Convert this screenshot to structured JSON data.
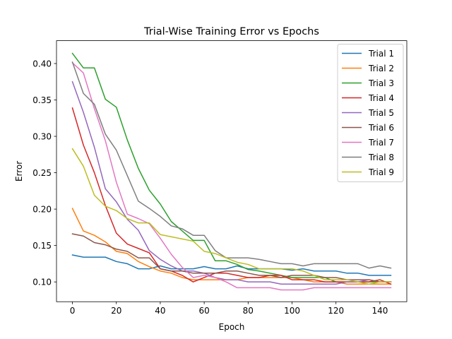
{
  "chart_data": {
    "type": "line",
    "title": "Trial-Wise Training Error vs Epochs",
    "xlabel": "Epoch",
    "ylabel": "Error",
    "xlim": [
      -7.25,
      152.25
    ],
    "ylim": [
      0.0728,
      0.4314
    ],
    "xticks": [
      0,
      20,
      40,
      60,
      80,
      100,
      120,
      140
    ],
    "yticks": [
      0.1,
      0.15,
      0.2,
      0.25,
      0.3,
      0.35,
      0.4
    ],
    "ytick_labels": [
      "0.10",
      "0.15",
      "0.20",
      "0.25",
      "0.30",
      "0.35",
      "0.40"
    ],
    "grid": false,
    "legend_position": "top-right",
    "x": [
      0,
      5,
      10,
      15,
      20,
      25,
      30,
      35,
      40,
      45,
      50,
      55,
      60,
      65,
      70,
      75,
      80,
      85,
      90,
      95,
      100,
      105,
      110,
      115,
      120,
      125,
      130,
      135,
      140,
      145
    ],
    "series": [
      {
        "name": "Trial 1",
        "color": "#1f77b4",
        "values": [
          0.137,
          0.134,
          0.134,
          0.134,
          0.128,
          0.125,
          0.118,
          0.118,
          0.122,
          0.118,
          0.118,
          0.118,
          0.121,
          0.118,
          0.118,
          0.122,
          0.118,
          0.118,
          0.118,
          0.118,
          0.116,
          0.118,
          0.115,
          0.115,
          0.115,
          0.112,
          0.112,
          0.109,
          0.109,
          0.109
        ]
      },
      {
        "name": "Trial 2",
        "color": "#ff7f0e",
        "values": [
          0.201,
          0.17,
          0.164,
          0.155,
          0.142,
          0.139,
          0.128,
          0.121,
          0.115,
          0.112,
          0.106,
          0.103,
          0.103,
          0.103,
          0.103,
          0.103,
          0.106,
          0.106,
          0.106,
          0.106,
          0.106,
          0.103,
          0.1,
          0.1,
          0.1,
          0.097,
          0.097,
          0.097,
          0.097,
          0.097
        ]
      },
      {
        "name": "Trial 3",
        "color": "#2ca02c",
        "values": [
          0.414,
          0.394,
          0.394,
          0.351,
          0.34,
          0.295,
          0.256,
          0.226,
          0.207,
          0.183,
          0.17,
          0.157,
          0.157,
          0.129,
          0.129,
          0.124,
          0.117,
          0.115,
          0.112,
          0.109,
          0.106,
          0.106,
          0.106,
          0.106,
          0.1,
          0.1,
          0.1,
          0.1,
          0.1,
          0.1
        ]
      },
      {
        "name": "Trial 4",
        "color": "#d62728",
        "values": [
          0.339,
          0.288,
          0.25,
          0.205,
          0.167,
          0.152,
          0.146,
          0.14,
          0.118,
          0.115,
          0.109,
          0.1,
          0.106,
          0.112,
          0.112,
          0.109,
          0.106,
          0.106,
          0.109,
          0.109,
          0.103,
          0.103,
          0.103,
          0.1,
          0.1,
          0.1,
          0.1,
          0.1,
          0.103,
          0.097
        ]
      },
      {
        "name": "Trial 5",
        "color": "#9467bd",
        "values": [
          0.375,
          0.333,
          0.285,
          0.228,
          0.21,
          0.186,
          0.171,
          0.143,
          0.131,
          0.122,
          0.115,
          0.115,
          0.112,
          0.106,
          0.103,
          0.103,
          0.1,
          0.1,
          0.1,
          0.097,
          0.097,
          0.097,
          0.097,
          0.097,
          0.097,
          0.1,
          0.1,
          0.103,
          0.1,
          0.1
        ]
      },
      {
        "name": "Trial 6",
        "color": "#8c564b",
        "values": [
          0.166,
          0.163,
          0.154,
          0.151,
          0.145,
          0.142,
          0.133,
          0.133,
          0.118,
          0.115,
          0.115,
          0.112,
          0.112,
          0.112,
          0.115,
          0.115,
          0.112,
          0.109,
          0.109,
          0.106,
          0.109,
          0.109,
          0.109,
          0.106,
          0.106,
          0.103,
          0.103,
          0.103,
          0.1,
          0.1
        ]
      },
      {
        "name": "Trial 7",
        "color": "#e377c2",
        "values": [
          0.401,
          0.387,
          0.338,
          0.294,
          0.237,
          0.193,
          0.187,
          0.18,
          0.16,
          0.138,
          0.12,
          0.106,
          0.109,
          0.106,
          0.1,
          0.092,
          0.092,
          0.092,
          0.092,
          0.089,
          0.089,
          0.089,
          0.092,
          0.092,
          0.092,
          0.092,
          0.092,
          0.092,
          0.092,
          0.092
        ]
      },
      {
        "name": "Trial 8",
        "color": "#7f7f7f",
        "values": [
          0.402,
          0.359,
          0.344,
          0.303,
          0.281,
          0.246,
          0.211,
          0.201,
          0.19,
          0.177,
          0.173,
          0.164,
          0.164,
          0.143,
          0.133,
          0.133,
          0.133,
          0.131,
          0.128,
          0.125,
          0.125,
          0.122,
          0.125,
          0.125,
          0.125,
          0.125,
          0.125,
          0.119,
          0.122,
          0.119
        ]
      },
      {
        "name": "Trial 9",
        "color": "#bcbd22",
        "values": [
          0.283,
          0.259,
          0.219,
          0.204,
          0.198,
          0.187,
          0.181,
          0.181,
          0.165,
          0.162,
          0.159,
          0.156,
          0.142,
          0.139,
          0.133,
          0.127,
          0.124,
          0.118,
          0.118,
          0.118,
          0.118,
          0.115,
          0.109,
          0.103,
          0.103,
          0.103,
          0.1,
          0.097,
          0.1,
          0.1
        ]
      }
    ]
  }
}
